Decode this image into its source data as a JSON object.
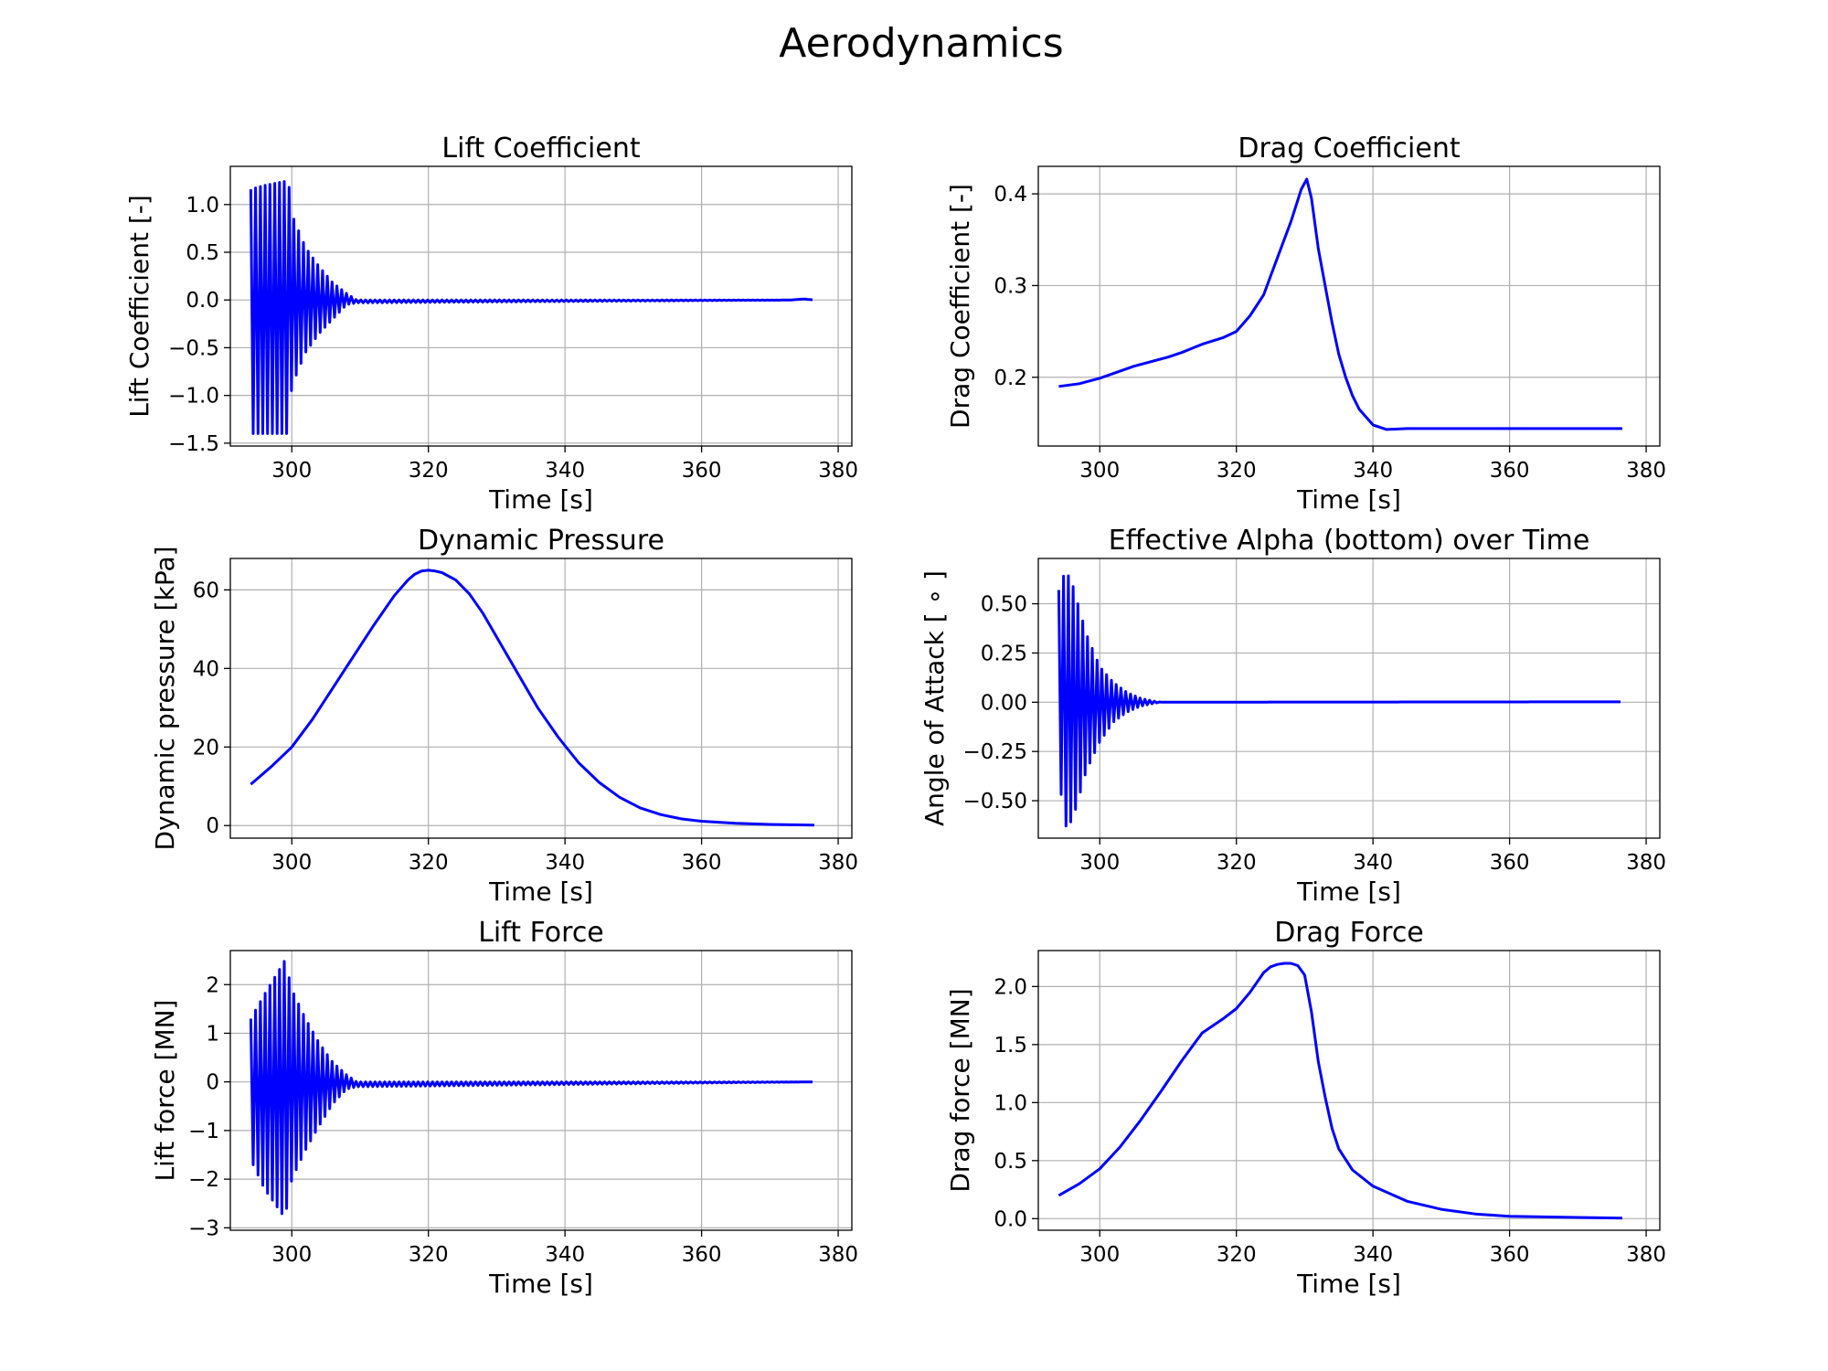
{
  "figure": {
    "title": "Aerodynamics",
    "line_color": "#0000ff"
  },
  "chart_data": [
    {
      "id": "lift-coefficient",
      "type": "line",
      "title": "Lift Coefficient",
      "xlabel": "Time [s]",
      "ylabel": "Lift Coefficient [-]",
      "grid": true,
      "xlim": [
        291,
        382
      ],
      "ylim": [
        -1.53,
        1.4
      ],
      "xticks": [
        300,
        320,
        340,
        360,
        380
      ],
      "xtick_labels": [
        "300",
        "320",
        "340",
        "360",
        "380"
      ],
      "yticks": [
        -1.5,
        -1.0,
        -0.5,
        0.0,
        0.5,
        1.0
      ],
      "ytick_labels": [
        "−1.5",
        "−1.0",
        "−0.5",
        "0.0",
        "0.5",
        "1.0"
      ],
      "series": [
        {
          "kind": "oscillation",
          "x_start": 294,
          "x_end": 376.5,
          "points": [
            [
              294,
              1.16,
              -1.4
            ],
            [
              296,
              1.2,
              -1.4
            ],
            [
              299.5,
              1.25,
              -1.4
            ],
            [
              300,
              0.9,
              -0.9
            ],
            [
              302,
              0.55,
              -0.55
            ],
            [
              304,
              0.35,
              -0.35
            ],
            [
              306,
              0.18,
              -0.2
            ],
            [
              308,
              0.07,
              -0.05
            ],
            [
              309.5,
              0.0,
              -0.03
            ],
            [
              376.5,
              0.0,
              0.0
            ]
          ],
          "base_x": [
            294,
            309,
            311,
            360,
            373,
            375,
            376.5
          ],
          "base_y": [
            0.0,
            -0.02,
            0.0,
            0.0,
            0.0,
            0.01,
            0.0
          ]
        }
      ]
    },
    {
      "id": "drag-coefficient",
      "type": "line",
      "title": "Drag Coefficient",
      "xlabel": "Time [s]",
      "ylabel": "Drag Coefficient [-]",
      "grid": true,
      "xlim": [
        291,
        382
      ],
      "ylim": [
        0.125,
        0.43
      ],
      "xticks": [
        300,
        320,
        340,
        360,
        380
      ],
      "xtick_labels": [
        "300",
        "320",
        "340",
        "360",
        "380"
      ],
      "yticks": [
        0.2,
        0.3,
        0.4
      ],
      "ytick_labels": [
        "0.2",
        "0.3",
        "0.4"
      ],
      "series": [
        {
          "kind": "line",
          "x": [
            294,
            297,
            300,
            305,
            310,
            312,
            315,
            318,
            320,
            322,
            324,
            326,
            328,
            329.5,
            330.3,
            331,
            332,
            333,
            334,
            335,
            336,
            337,
            338,
            340,
            342,
            345,
            350,
            360,
            376.5
          ],
          "y": [
            0.19,
            0.193,
            0.199,
            0.212,
            0.222,
            0.227,
            0.236,
            0.243,
            0.25,
            0.267,
            0.29,
            0.33,
            0.37,
            0.405,
            0.416,
            0.395,
            0.34,
            0.3,
            0.26,
            0.225,
            0.2,
            0.18,
            0.165,
            0.148,
            0.143,
            0.144,
            0.144,
            0.144,
            0.144
          ]
        }
      ]
    },
    {
      "id": "dynamic-pressure",
      "type": "line",
      "title": "Dynamic Pressure",
      "xlabel": "Time [s]",
      "ylabel": "Dynamic pressure [kPa]",
      "grid": true,
      "xlim": [
        291,
        382
      ],
      "ylim": [
        -3.2,
        68
      ],
      "xticks": [
        300,
        320,
        340,
        360,
        380
      ],
      "xtick_labels": [
        "300",
        "320",
        "340",
        "360",
        "380"
      ],
      "yticks": [
        0,
        20,
        40,
        60
      ],
      "ytick_labels": [
        "0",
        "20",
        "40",
        "60"
      ],
      "series": [
        {
          "kind": "line",
          "x": [
            294,
            297,
            300,
            303,
            306,
            309,
            312,
            315,
            317,
            318,
            319,
            320,
            321,
            322,
            324,
            326,
            328,
            330,
            333,
            336,
            339,
            342,
            345,
            348,
            351,
            354,
            357,
            360,
            365,
            370,
            376.5
          ],
          "y": [
            10.5,
            15,
            20,
            27,
            35,
            43,
            51,
            58.5,
            62.5,
            64,
            64.8,
            65,
            64.8,
            64.4,
            62.5,
            59,
            54,
            48,
            39,
            30,
            22.5,
            16,
            11,
            7.2,
            4.5,
            2.8,
            1.7,
            1.1,
            0.6,
            0.3,
            0.1
          ]
        }
      ]
    },
    {
      "id": "effective-alpha",
      "type": "line",
      "title": "Effective Alpha (bottom) over Time",
      "xlabel": "Time [s]",
      "ylabel": "Angle of Attack [ ∘ ]",
      "grid": true,
      "xlim": [
        291,
        382
      ],
      "ylim": [
        -0.69,
        0.73
      ],
      "xticks": [
        300,
        320,
        340,
        360,
        380
      ],
      "xtick_labels": [
        "300",
        "320",
        "340",
        "360",
        "380"
      ],
      "yticks": [
        -0.5,
        -0.25,
        0.0,
        0.25,
        0.5
      ],
      "ytick_labels": [
        "−0.50",
        "−0.25",
        "0.00",
        "0.25",
        "0.50"
      ],
      "series": [
        {
          "kind": "oscillation",
          "x_start": 294,
          "x_end": 376.5,
          "points": [
            [
              294,
              0.57,
              -0.38
            ],
            [
              295,
              0.67,
              -0.63
            ],
            [
              296,
              0.6,
              -0.6
            ],
            [
              298,
              0.35,
              -0.35
            ],
            [
              300,
              0.18,
              -0.2
            ],
            [
              302,
              0.1,
              -0.1
            ],
            [
              304,
              0.05,
              -0.05
            ],
            [
              306,
              0.02,
              -0.02
            ],
            [
              308,
              0.005,
              -0.005
            ],
            [
              309,
              0.0,
              0.0
            ],
            [
              376.5,
              0.0,
              0.0
            ]
          ],
          "base_x": [
            294,
            376.5
          ],
          "base_y": [
            0.0,
            0.002
          ]
        }
      ]
    },
    {
      "id": "lift-force",
      "type": "line",
      "title": "Lift Force",
      "xlabel": "Time [s]",
      "ylabel": "Lift force [MN]",
      "grid": true,
      "xlim": [
        291,
        382
      ],
      "ylim": [
        -3.05,
        2.7
      ],
      "xticks": [
        300,
        320,
        340,
        360,
        380
      ],
      "xtick_labels": [
        "300",
        "320",
        "340",
        "360",
        "380"
      ],
      "yticks": [
        -3,
        -2,
        -1,
        0,
        1,
        2
      ],
      "ytick_labels": [
        "−3",
        "−2",
        "−1",
        "0",
        "1",
        "2"
      ],
      "series": [
        {
          "kind": "oscillation",
          "x_start": 294,
          "x_end": 376.5,
          "points": [
            [
              294,
              1.3,
              -1.6
            ],
            [
              296,
              1.8,
              -2.2
            ],
            [
              299,
              2.5,
              -2.8
            ],
            [
              300,
              1.9,
              -2.0
            ],
            [
              302,
              1.3,
              -1.4
            ],
            [
              304,
              0.8,
              -0.9
            ],
            [
              306,
              0.4,
              -0.45
            ],
            [
              308,
              0.15,
              -0.15
            ],
            [
              309.5,
              0.0,
              -0.1
            ],
            [
              376.5,
              0.0,
              0.0
            ]
          ],
          "base_x": [
            294,
            309,
            311,
            376.5
          ],
          "base_y": [
            0.0,
            -0.1,
            0.0,
            0.0
          ]
        }
      ]
    },
    {
      "id": "drag-force",
      "type": "line",
      "title": "Drag Force",
      "xlabel": "Time [s]",
      "ylabel": "Drag force [MN]",
      "grid": true,
      "xlim": [
        291,
        382
      ],
      "ylim": [
        -0.1,
        2.31
      ],
      "xticks": [
        300,
        320,
        340,
        360,
        380
      ],
      "xtick_labels": [
        "300",
        "320",
        "340",
        "360",
        "380"
      ],
      "yticks": [
        0.0,
        0.5,
        1.0,
        1.5,
        2.0
      ],
      "ytick_labels": [
        "0.0",
        "0.5",
        "1.0",
        "1.5",
        "2.0"
      ],
      "series": [
        {
          "kind": "line",
          "x": [
            294,
            297,
            300,
            303,
            306,
            309,
            312,
            315,
            318,
            320,
            322,
            324,
            325,
            326,
            327,
            328,
            329,
            330,
            331,
            332,
            333,
            334,
            335,
            337,
            340,
            345,
            350,
            355,
            360,
            370,
            376.5
          ],
          "y": [
            0.2,
            0.3,
            0.43,
            0.62,
            0.85,
            1.1,
            1.36,
            1.6,
            1.72,
            1.81,
            1.95,
            2.12,
            2.17,
            2.19,
            2.2,
            2.2,
            2.18,
            2.1,
            1.78,
            1.35,
            1.05,
            0.78,
            0.6,
            0.42,
            0.28,
            0.15,
            0.08,
            0.04,
            0.02,
            0.01,
            0.005
          ]
        }
      ]
    }
  ]
}
